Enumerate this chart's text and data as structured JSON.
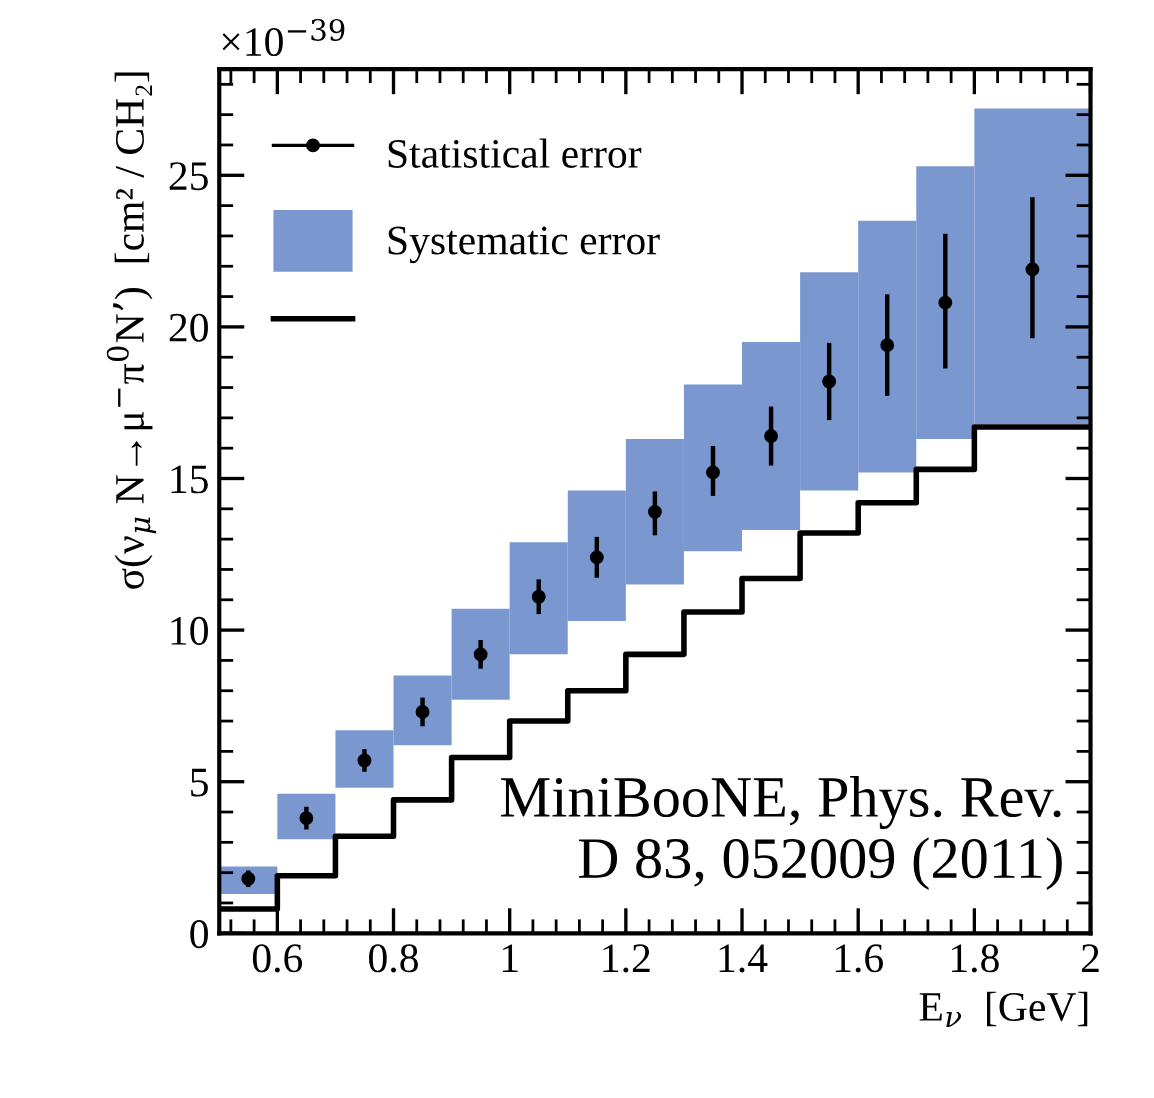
{
  "chart_data": {
    "type": "histogram",
    "ylabel": "σ(ν$_{μ}$ N→μ$^{−}$π$^{0}$N’)  [cm² / CH₂]",
    "xlabel": "E$_{ν}$  [GeV]",
    "annotations": [
      "×10$^{−39}$",
      "MiniBooNE, Phys. Rev.\nD 83, 052009 (2011)"
    ],
    "bins": [
      0.5,
      0.6,
      0.7,
      0.8,
      0.9,
      1.0,
      1.1,
      1.2,
      1.3,
      1.4,
      1.5,
      1.6,
      1.7,
      1.8,
      2.0
    ],
    "series": [
      {
        "name": "Statistical error",
        "type": "scatter",
        "marker": "circle",
        "color": "#000000",
        "x": [
          0.55,
          0.65,
          0.75,
          0.85,
          0.95,
          1.05,
          1.15,
          1.25,
          1.35,
          1.45,
          1.55,
          1.65,
          1.75,
          1.9
        ],
        "values": [
          1.8,
          3.8,
          5.7,
          7.3,
          9.2,
          11.1,
          12.4,
          13.9,
          15.2,
          16.4,
          18.2,
          19.4,
          20.8,
          21.9
        ],
        "errors": [
          0.2,
          0.3,
          0.3,
          0.4,
          0.4,
          0.5,
          0.6,
          [
            13.2,
            14.5
          ],
          [
            14.5,
            16.0
          ],
          [
            15.5,
            17.3
          ],
          [
            17.0,
            19.4
          ],
          [
            17.8,
            21.0
          ],
          [
            18.7,
            23.0
          ],
          [
            19.7,
            24.2
          ]
        ]
      },
      {
        "name": "Systematic error",
        "color": "#7b97d0",
        "base": [
          1.3,
          3.1,
          4.8,
          6.2,
          7.7,
          9.2,
          10.3,
          11.5,
          12.6,
          13.3,
          14.6,
          15.2,
          16.3,
          16.8
        ],
        "values": [
          0.9,
          1.5,
          1.9,
          2.3,
          3.0,
          3.7,
          4.3,
          4.8,
          5.5,
          6.2,
          7.2,
          8.3,
          9.0,
          10.4
        ]
      },
      {
        "type": "step",
        "color": "#000000",
        "x": [
          0.5,
          0.6,
          0.7,
          0.8,
          0.9,
          1.0,
          1.1,
          1.2,
          1.3,
          1.4,
          1.5,
          1.6,
          1.7,
          1.8,
          2.0
        ],
        "values": [
          0.8,
          1.9,
          3.2,
          4.4,
          5.8,
          7.0,
          8.0,
          9.2,
          10.6,
          11.7,
          13.2,
          14.2,
          15.3,
          16.7,
          16.7
        ]
      }
    ],
    "xlim": [
      0.5,
      2
    ],
    "xticks": [
      0.6,
      0.8,
      1,
      1.2,
      1.4,
      1.6,
      1.8,
      2
    ],
    "ylim": [
      0,
      28.5
    ],
    "yticks": [
      0,
      5,
      10,
      15,
      20,
      25
    ],
    "legend": "top left",
    "grid": false
  }
}
